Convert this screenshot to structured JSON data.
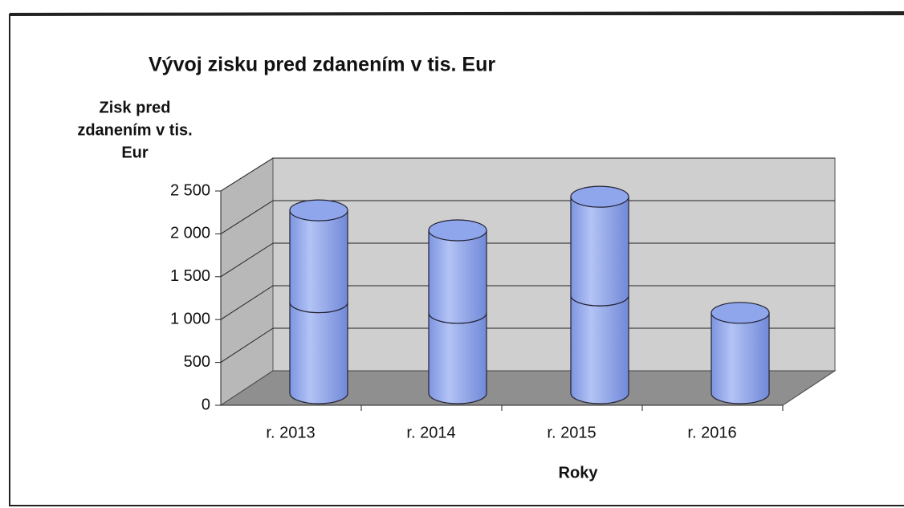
{
  "chart_data": {
    "type": "bar3d_cylinder_stacked",
    "title": "Vývoj zisku pred zdanením v tis. Eur",
    "y_label": [
      "Zisk pred",
      "zdanením v tis.",
      "Eur"
    ],
    "x_label": "Roky",
    "categories": [
      "r. 2013",
      "r. 2014",
      "r. 2015",
      "r. 2016"
    ],
    "series": [
      {
        "color": "#8fa6ec",
        "values": [
          1070,
          945,
          1150,
          945
        ]
      },
      {
        "color": "#8fa6ec",
        "values": [
          1080,
          970,
          1160,
          null
        ]
      }
    ],
    "ylim": [
      0,
      2500
    ],
    "yticks": [
      0,
      500,
      {
        "value": 1000,
        "label": "1 000"
      },
      {
        "value": 1500,
        "label": "1 500"
      },
      {
        "value": 2000,
        "label": "2 000"
      },
      {
        "value": 2500,
        "label": "2 500"
      }
    ],
    "grid": true
  }
}
